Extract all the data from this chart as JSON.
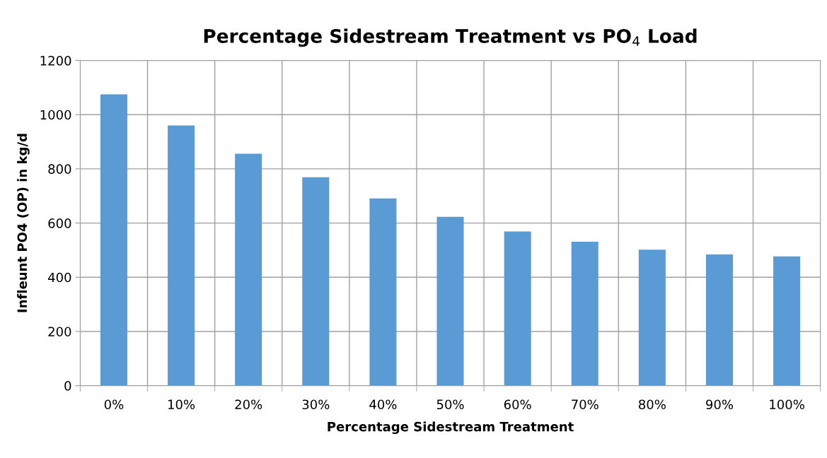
{
  "chart_data": {
    "type": "bar",
    "title": "Percentage Sidestream Treatment vs PO$_{4}$ Load",
    "xlabel": "Percentage Sidestream Treatment",
    "ylabel": "Infleunt PO4 (OP) in kg/d",
    "categories": [
      "0%",
      "10%",
      "20%",
      "30%",
      "40%",
      "50%",
      "60%",
      "70%",
      "80%",
      "90%",
      "100%"
    ],
    "values": [
      1075,
      960,
      856,
      769,
      691,
      623,
      569,
      531,
      502,
      484,
      477
    ],
    "color": "#5b9bd5",
    "ylim": [
      0,
      1200
    ],
    "yticks": [
      0,
      200,
      400,
      600,
      800,
      1000,
      1200
    ],
    "grid": true
  }
}
